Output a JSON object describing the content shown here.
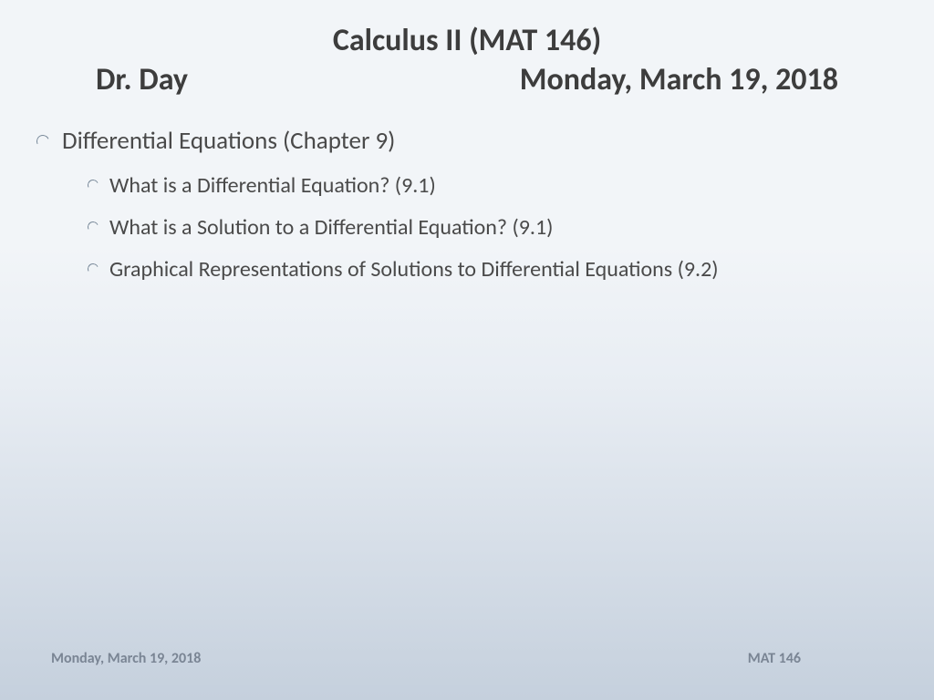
{
  "title": {
    "course": "Calculus II (MAT 146)",
    "instructor": "Dr. Day",
    "date": "Monday, March 19, 2018"
  },
  "outline": {
    "heading": "Differential Equations (Chapter 9)",
    "items": [
      "What is a Differential Equation? (9.1)",
      "What is a Solution to a Differential Equation? (9.1)",
      "Graphical Representations of Solutions to Differential Equations (9.2)"
    ]
  },
  "footer": {
    "left": "Monday, March 19, 2018",
    "right": "MAT 146"
  },
  "style": {
    "background_gradient_top": "#f2f5f8",
    "background_gradient_bottom": "#c5d0dd",
    "title_color": "#3d3d3d",
    "body_color": "#4a4a4a",
    "footer_color": "#7a8594",
    "bullet_border_color": "#7a8a9a",
    "title_fontsize_pt": 26,
    "body_l1_fontsize_pt": 20,
    "body_l2_fontsize_pt": 18,
    "footer_fontsize_pt": 12,
    "font_family": "Calibri"
  }
}
